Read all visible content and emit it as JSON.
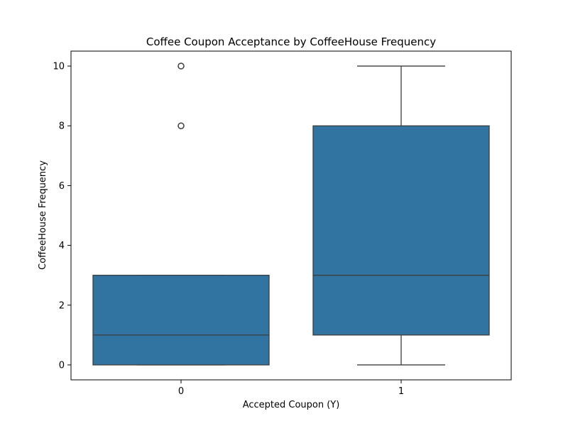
{
  "chart_data": {
    "type": "box",
    "title": "Coffee Coupon Acceptance by CoffeeHouse Frequency",
    "xlabel": "Accepted Coupon (Y)",
    "ylabel": "CoffeeHouse Frequency",
    "categories": [
      "0",
      "1"
    ],
    "y_ticks": [
      0,
      2,
      4,
      6,
      8,
      10
    ],
    "ylim": [
      -0.5,
      10.5
    ],
    "grid": false,
    "legend": "none",
    "box_color": "#3274a1",
    "line_color": "#3d3d3d",
    "boxes": [
      {
        "category": "0",
        "whisker_low": 0,
        "q1": 0,
        "median": 1,
        "q3": 3,
        "whisker_high": 3,
        "outliers": [
          8,
          10
        ]
      },
      {
        "category": "1",
        "whisker_low": 0,
        "q1": 1,
        "median": 3,
        "q3": 8,
        "whisker_high": 10,
        "outliers": []
      }
    ]
  }
}
